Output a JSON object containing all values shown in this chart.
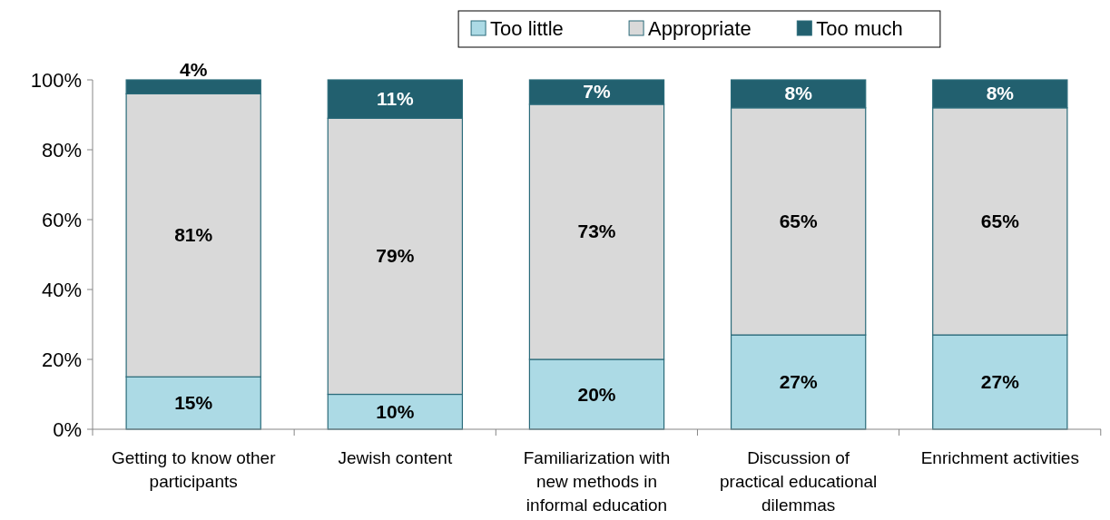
{
  "chart_data": {
    "type": "bar",
    "stacked": true,
    "categories": [
      "Getting to know other participants",
      "Jewish content",
      "Familiarization with new methods in informal education",
      "Discussion of practical educational dilemmas",
      "Enrichment activities"
    ],
    "series": [
      {
        "name": "Too little",
        "color": "#acdae5",
        "values": [
          15,
          10,
          20,
          27,
          27
        ],
        "value_labels": [
          "15%",
          "10%",
          "20%",
          "27%",
          "27%"
        ]
      },
      {
        "name": "Appropriate",
        "color": "#d9d9d9",
        "values": [
          81,
          79,
          73,
          65,
          65
        ],
        "value_labels": [
          "81%",
          "79%",
          "73%",
          "65%",
          "65%"
        ]
      },
      {
        "name": "Too much",
        "color": "#22606f",
        "values": [
          4,
          11,
          7,
          8,
          8
        ],
        "value_labels": [
          "4%",
          "11%",
          "7%",
          "8%",
          "8%"
        ]
      }
    ],
    "ylim": [
      0,
      100
    ],
    "yticks": [
      {
        "value": 0,
        "label": "0%"
      },
      {
        "value": 20,
        "label": "20%"
      },
      {
        "value": 40,
        "label": "40%"
      },
      {
        "value": 60,
        "label": "60%"
      },
      {
        "value": 80,
        "label": "80%"
      },
      {
        "value": 100,
        "label": "100%"
      }
    ],
    "grid": false,
    "legend": "top"
  }
}
